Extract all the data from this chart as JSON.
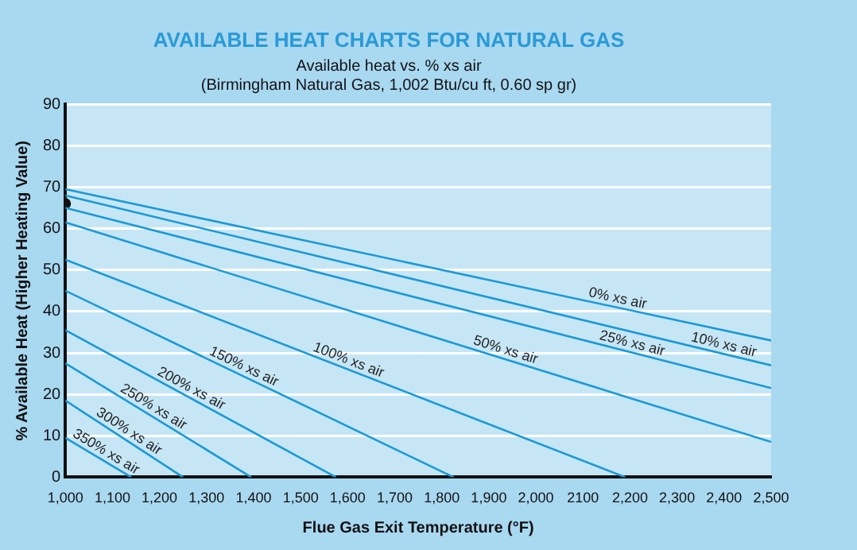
{
  "chart_data": {
    "type": "line",
    "title": "AVAILABLE HEAT CHARTS FOR NATURAL GAS",
    "subtitle": "Available heat vs. % xs air\n(Birmingham Natural Gas, 1,002 Btu/cu ft, 0.60 sp gr)",
    "xlabel": "Flue Gas Exit Temperature (°F)",
    "ylabel": "% Available Heat (Higher Heating Value)",
    "xlim": [
      1000,
      2500
    ],
    "ylim": [
      0,
      90
    ],
    "xticks": [
      {
        "value": 1000,
        "label": "1,000"
      },
      {
        "value": 1100,
        "label": "1,100"
      },
      {
        "value": 1200,
        "label": "1,200"
      },
      {
        "value": 1300,
        "label": "1,300"
      },
      {
        "value": 1400,
        "label": "1,400"
      },
      {
        "value": 1500,
        "label": "1,500"
      },
      {
        "value": 1600,
        "label": "1,600"
      },
      {
        "value": 1700,
        "label": "1,700"
      },
      {
        "value": 1800,
        "label": "1,800"
      },
      {
        "value": 1900,
        "label": "1,900"
      },
      {
        "value": 2000,
        "label": "2,000"
      },
      {
        "value": 2100,
        "label": "2100"
      },
      {
        "value": 2200,
        "label": "2,200"
      },
      {
        "value": 2300,
        "label": "2,300"
      },
      {
        "value": 2400,
        "label": "2,400"
      },
      {
        "value": 2500,
        "label": "2,500"
      }
    ],
    "yticks": [
      0,
      10,
      20,
      30,
      40,
      50,
      60,
      70,
      80,
      90
    ],
    "grid": "y",
    "legend": false,
    "line_style": "solid",
    "marker": "none",
    "series": [
      {
        "name": "0% xs air",
        "color": "#1a9ad6",
        "x": [
          1000,
          2500
        ],
        "values": [
          69.5,
          33
        ]
      },
      {
        "name": "10% xs air",
        "color": "#1a9ad6",
        "x": [
          1000,
          2500
        ],
        "values": [
          68,
          27
        ]
      },
      {
        "name": "25% xs air",
        "color": "#1a9ad6",
        "x": [
          1000,
          2500
        ],
        "values": [
          65,
          21.5
        ]
      },
      {
        "name": "50% xs air",
        "color": "#1a9ad6",
        "x": [
          1000,
          2500
        ],
        "values": [
          61.5,
          8.5
        ]
      },
      {
        "name": "100% xs air",
        "color": "#1a9ad6",
        "x": [
          1000,
          2190
        ],
        "values": [
          52.5,
          0
        ]
      },
      {
        "name": "150% xs air",
        "color": "#1a9ad6",
        "x": [
          1000,
          1825
        ],
        "values": [
          45,
          0
        ]
      },
      {
        "name": "200% xs air",
        "color": "#1a9ad6",
        "x": [
          1000,
          1575
        ],
        "values": [
          35.5,
          0
        ]
      },
      {
        "name": "250% xs air",
        "color": "#1a9ad6",
        "x": [
          1000,
          1395
        ],
        "values": [
          27.5,
          0
        ]
      },
      {
        "name": "300% xs air",
        "color": "#1a9ad6",
        "x": [
          1000,
          1250
        ],
        "values": [
          18.5,
          0
        ]
      },
      {
        "name": "350% xs air",
        "color": "#1a9ad6",
        "x": [
          1000,
          1140
        ],
        "values": [
          9.5,
          0
        ]
      },
      {
        "type": "scatter",
        "color": "#111111",
        "x": [
          1000
        ],
        "values": [
          66
        ],
        "marker": "circle"
      }
    ]
  }
}
